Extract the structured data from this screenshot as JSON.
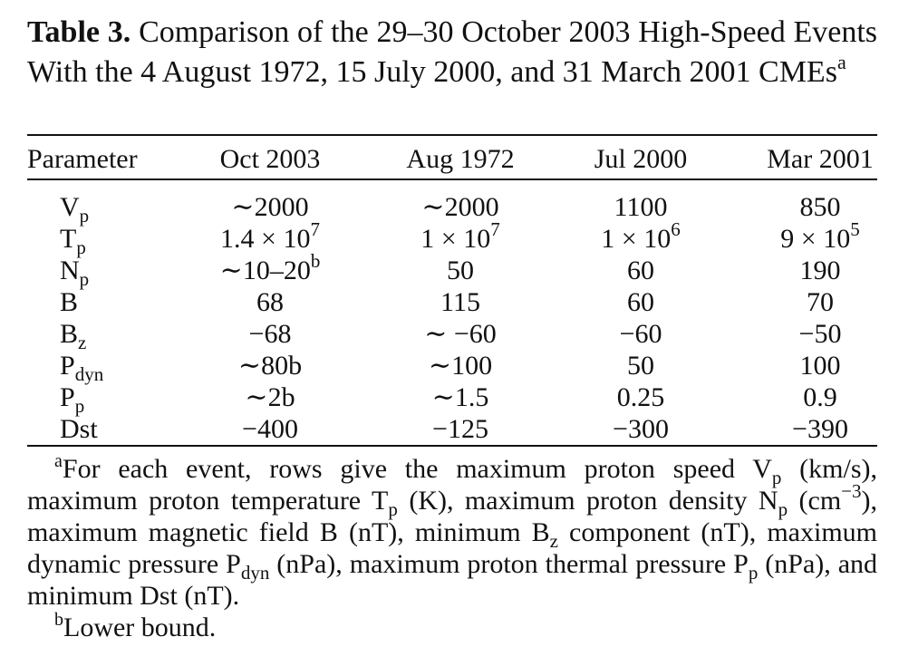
{
  "caption": {
    "label": "Table 3.",
    "text": "Comparison of the 29–30 October 2003 High-Speed Events With the 4 August 1972, 15 July 2000, and 31 March 2001 CMEs",
    "note_marker": "a"
  },
  "table": {
    "headers": [
      "Parameter",
      "Oct 2003",
      "Aug 1972",
      "Jul 2000",
      "Mar 2001"
    ],
    "rows": [
      {
        "param": "V",
        "sub": "p",
        "values": [
          "∼2000",
          "∼2000",
          "1100",
          "850"
        ]
      },
      {
        "param": "T",
        "sub": "p",
        "values": [
          "1.4 × 10|7",
          "1 × 10|7",
          "1 × 10|6",
          "9 × 10|5"
        ]
      },
      {
        "param": "N",
        "sub": "p",
        "values": [
          "∼10–20|b",
          "50",
          "60",
          "190"
        ]
      },
      {
        "param": "B",
        "sub": "",
        "values": [
          "68",
          "115",
          "60",
          "70"
        ]
      },
      {
        "param": "B",
        "sub": "z",
        "values": [
          "−68",
          "∼ −60",
          "−60",
          "−50"
        ]
      },
      {
        "param": "P",
        "sub": "dyn",
        "values": [
          "∼80b",
          "∼100",
          "50",
          "100"
        ]
      },
      {
        "param": "P",
        "sub": "p",
        "values": [
          "∼2b",
          "∼1.5",
          "0.25",
          "0.9"
        ]
      },
      {
        "param": "Dst",
        "sub": "",
        "values": [
          "−400",
          "−125",
          "−300",
          "−390"
        ]
      }
    ]
  },
  "footnotes": {
    "a": {
      "marker": "a",
      "parts": [
        "For each event, rows give the maximum proton speed V",
        "p",
        " (km/s), maximum proton temperature T",
        "p",
        " (K), maximum proton density N",
        "p",
        " (cm",
        "−3",
        "), maximum magnetic field B (nT), minimum B",
        "z",
        " component (nT), maximum dynamic pressure P",
        "dyn",
        " (nPa), maximum proton thermal pressure P",
        "p",
        " (nPa), and minimum Dst (nT)."
      ]
    },
    "b": {
      "marker": "b",
      "text": "Lower bound."
    }
  }
}
